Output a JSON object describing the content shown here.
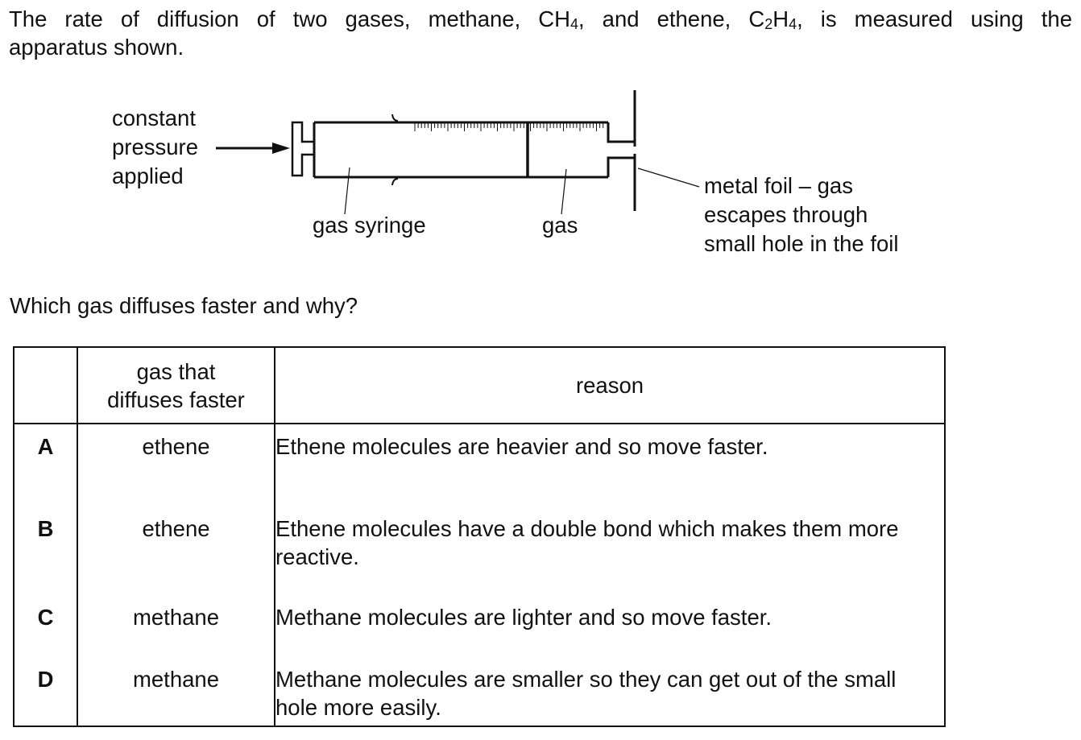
{
  "intro": {
    "line1_pre": "The rate of diffusion of two gases, methane, CH",
    "ch4_sub": "4",
    "line1_mid": ", and ethene, C",
    "c2_sub": "2",
    "line1_h": "H",
    "h4_sub": "4",
    "line1_post": ", is measured using the",
    "line2": "apparatus shown."
  },
  "diagram": {
    "label_pressure": [
      "constant",
      "pressure",
      "applied"
    ],
    "label_syringe": "gas syringe",
    "label_gas": "gas",
    "label_foil": [
      "metal foil – gas",
      "escapes through",
      "small hole in the foil"
    ]
  },
  "question": "Which gas diffuses faster and why?",
  "table": {
    "headers": {
      "letter": "",
      "gas_line1": "gas that",
      "gas_line2": "diffuses faster",
      "reason": "reason"
    },
    "rows": [
      {
        "letter": "A",
        "gas": "ethene",
        "reason": "Ethene molecules are heavier and so move faster."
      },
      {
        "letter": "B",
        "gas": "ethene",
        "reason": "Ethene molecules have a double bond which makes them more reactive."
      },
      {
        "letter": "C",
        "gas": "methane",
        "reason": "Methane molecules are lighter and so move faster."
      },
      {
        "letter": "D",
        "gas": "methane",
        "reason": "Methane molecules are smaller so they can get out of the small hole more easily."
      }
    ]
  }
}
